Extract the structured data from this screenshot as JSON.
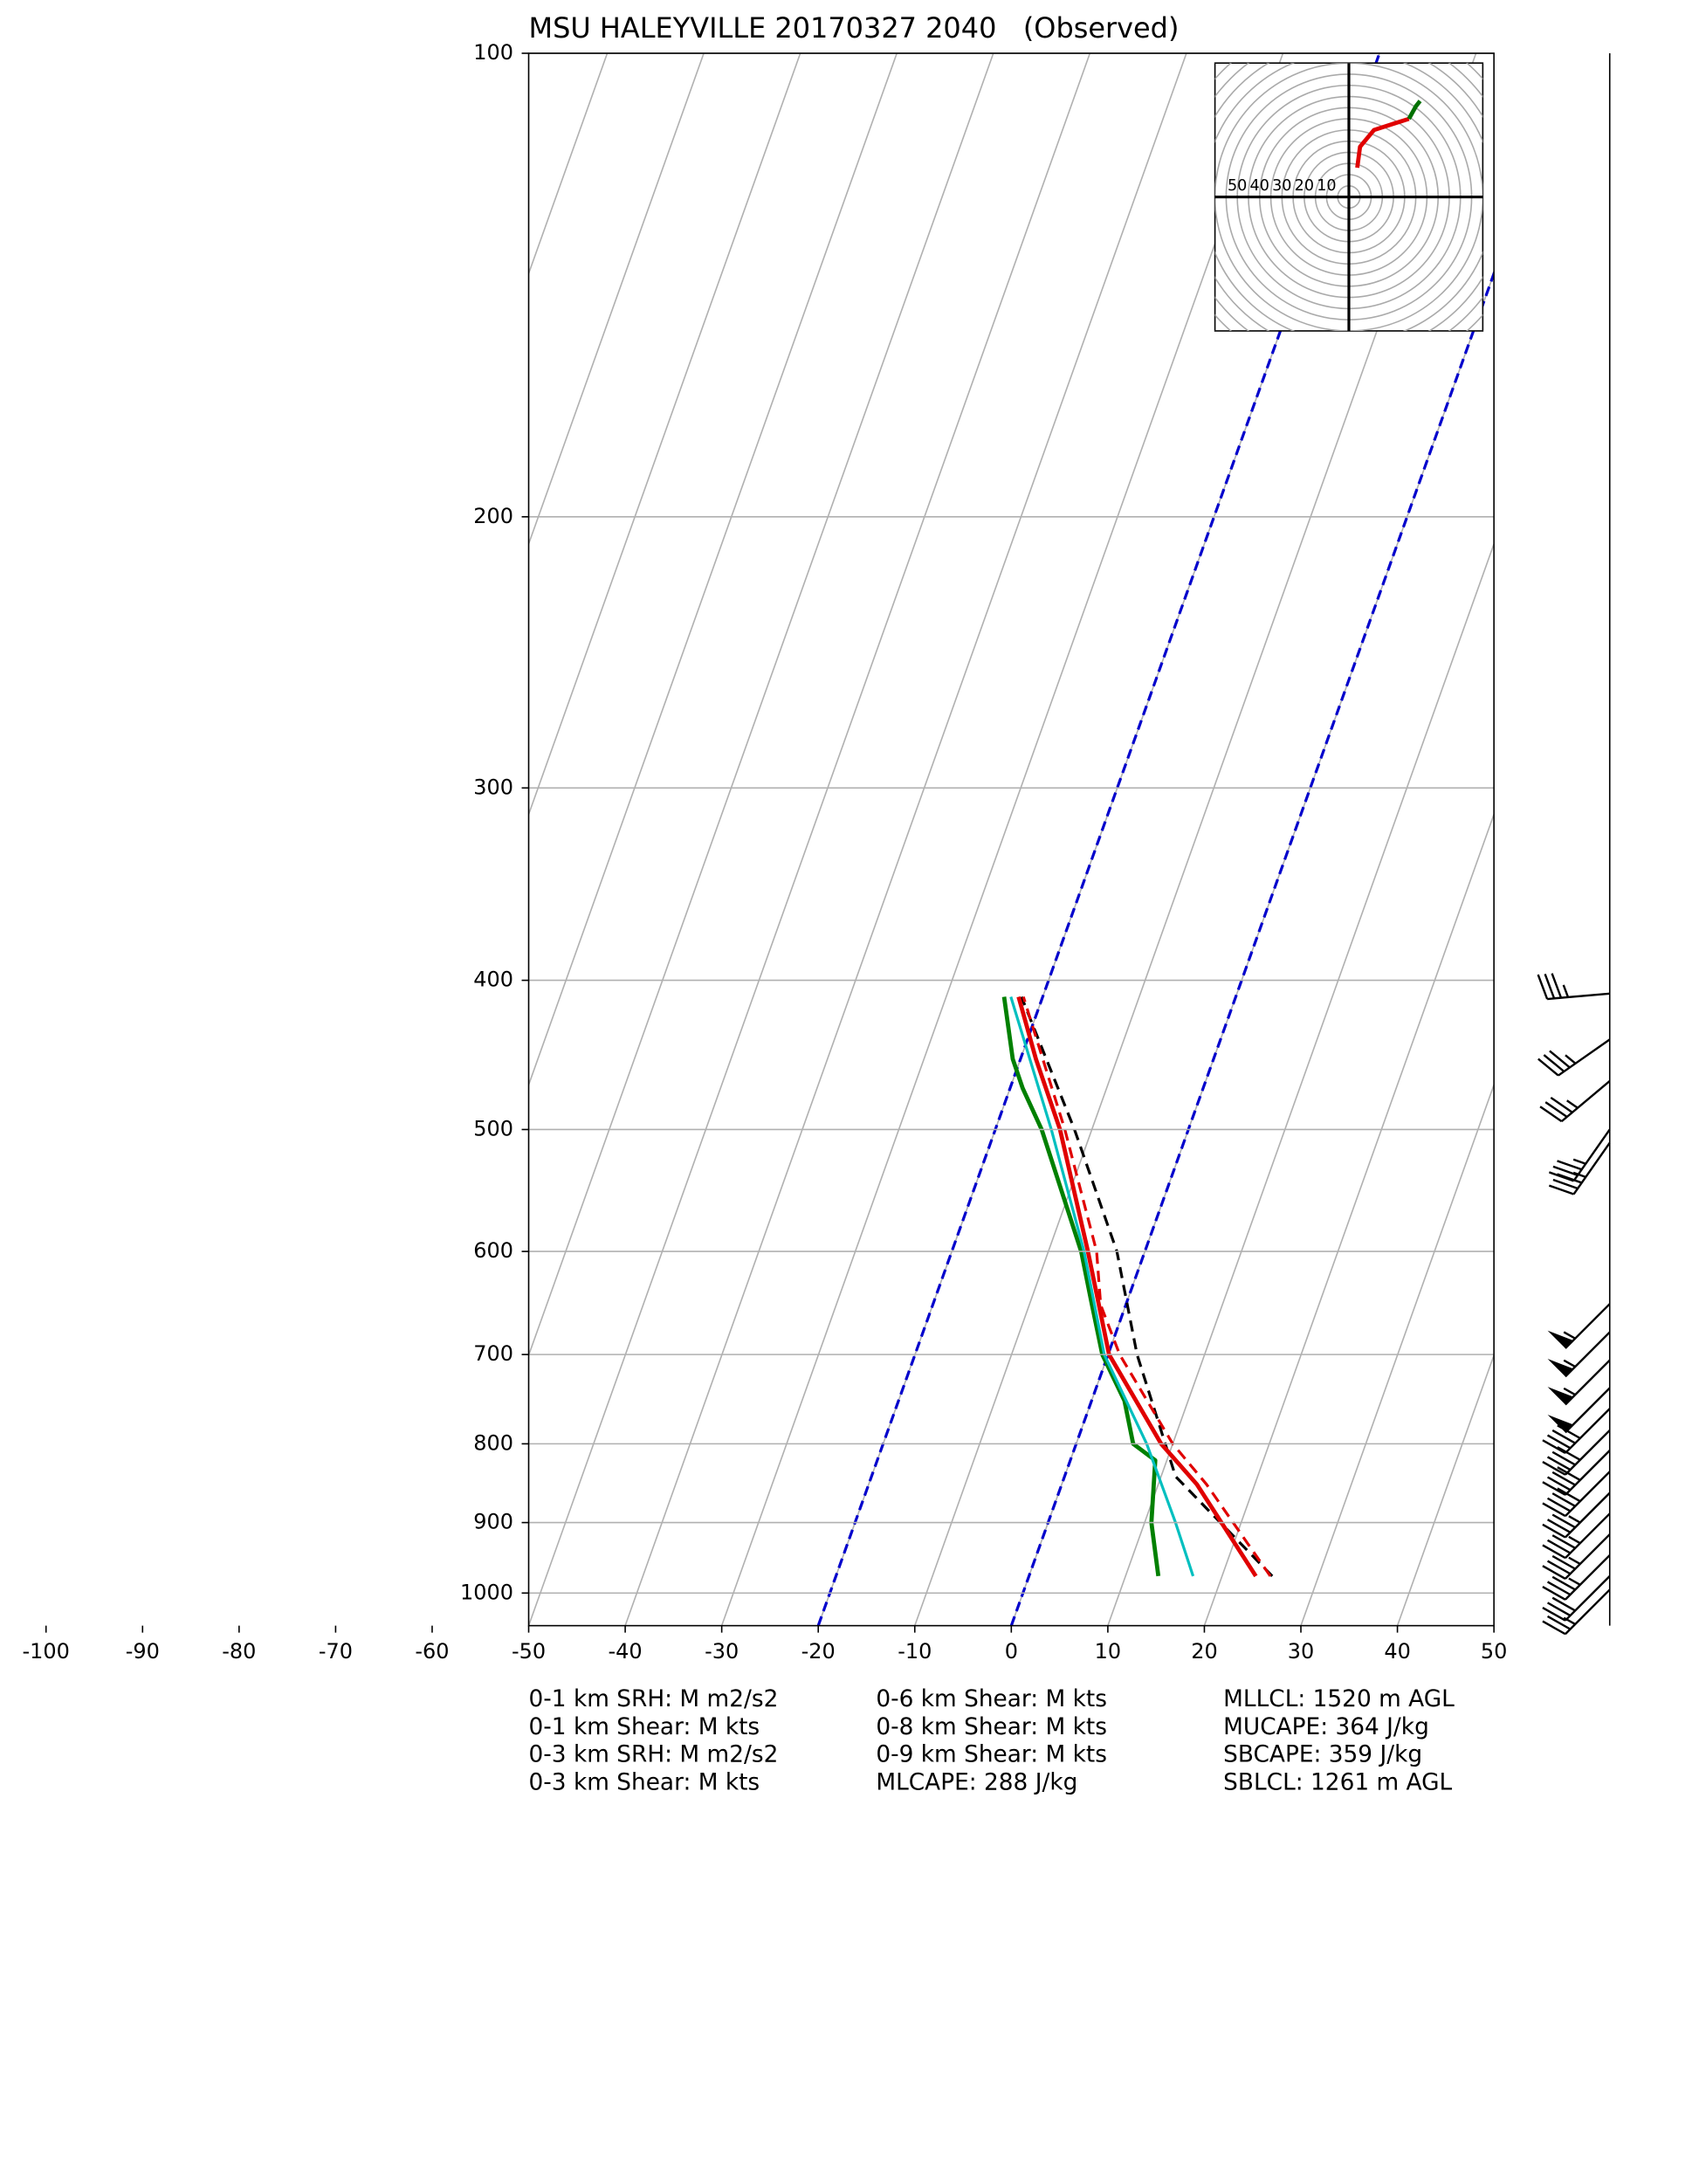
{
  "chart_data": {
    "type": "skewt",
    "title": "MSU HALEYVILLE 20170327 2040   (Observed)",
    "ylim": [
      1050,
      100
    ],
    "yticks": [
      100,
      200,
      300,
      400,
      500,
      600,
      700,
      800,
      900,
      1000
    ],
    "log_y": true,
    "xlim": [
      -50,
      50
    ],
    "xticks": [
      -100,
      -90,
      -80,
      -70,
      -60,
      -50,
      -40,
      -30,
      -20,
      -10,
      0,
      10,
      20,
      30,
      40,
      50
    ],
    "grid": true,
    "highlight_isotherms": {
      "color": "#0000cc",
      "values": [
        -20,
        0
      ]
    },
    "series": [
      {
        "color": "#008000",
        "width": 3,
        "dashed": false,
        "pressure": [
          975,
          900,
          820,
          800,
          750,
          700,
          650,
          600,
          500,
          470,
          450,
          410
        ],
        "values": [
          13.4,
          10.7,
          8.8,
          5.9,
          3.4,
          -0.6,
          -3.5,
          -6.6,
          -15.2,
          -18.7,
          -20.8,
          -24.0
        ]
      },
      {
        "color": "#00bfbf",
        "width": 2,
        "dashed": false,
        "pressure": [
          975,
          900,
          800,
          700,
          600,
          500,
          410
        ],
        "values": [
          17.0,
          13.2,
          7.3,
          -0.4,
          -6.3,
          -14.2,
          -23.3
        ]
      },
      {
        "color": "#000000",
        "width": 2,
        "dashed": true,
        "pressure": [
          975,
          840,
          700,
          600,
          500,
          410
        ],
        "values": [
          25.2,
          11.5,
          3.0,
          -2.9,
          -11.8,
          -22.2
        ]
      },
      {
        "color": "#e00000",
        "width": 2,
        "dashed": true,
        "pressure": [
          975,
          850,
          800,
          700,
          650,
          600,
          500,
          410
        ],
        "values": [
          25.0,
          15.0,
          10.0,
          1.2,
          -2.6,
          -5.0,
          -12.8,
          -22.0
        ]
      },
      {
        "color": "#e00000",
        "width": 3,
        "dashed": false,
        "pressure": [
          975,
          850,
          800,
          700,
          600,
          500,
          450,
          410
        ],
        "values": [
          23.5,
          14.0,
          8.8,
          0.1,
          -5.9,
          -13.3,
          -18.4,
          -22.5
        ]
      }
    ],
    "winds": {
      "pressure": [
        408,
        437,
        465,
        500,
        510,
        649,
        677,
        706,
        736,
        759,
        784,
        808,
        834,
        861,
        888,
        916,
        945,
        975,
        995
      ],
      "speed": [
        35,
        35,
        35,
        35,
        35,
        55,
        55,
        55,
        50,
        40,
        40,
        40,
        40,
        35,
        35,
        35,
        35,
        30,
        25
      ],
      "direction": [
        265,
        235,
        230,
        215,
        215,
        225,
        225,
        225,
        225,
        225,
        225,
        225,
        225,
        225,
        225,
        225,
        225,
        225,
        225
      ]
    },
    "hodograph": {
      "rings": [
        10,
        20,
        30,
        40,
        50
      ],
      "series": [
        {
          "color": "#e00000",
          "u": [
            3.75,
            5,
            11.25,
            20.6,
            26.9
          ],
          "v": [
            13.1,
            22.5,
            30,
            33,
            35
          ]
        },
        {
          "color": "#007000",
          "u": [
            26.9,
            30,
            31.9
          ],
          "v": [
            35,
            40.6,
            43
          ]
        }
      ]
    },
    "stats": [
      [
        "0-1 km SRH: M m2/s2",
        "0-1 km Shear: M kts",
        "0-3 km SRH: M m2/s2",
        "0-3 km Shear: M kts"
      ],
      [
        "0-6 km Shear: M kts",
        "0-8 km Shear: M kts",
        "0-9 km Shear: M kts",
        "MLCAPE: 288 J/kg"
      ],
      [
        "MLLCL: 1520 m AGL",
        "MUCAPE: 364 J/kg",
        "SBCAPE: 359 J/kg",
        "SBLCL: 1261 m AGL"
      ]
    ]
  }
}
